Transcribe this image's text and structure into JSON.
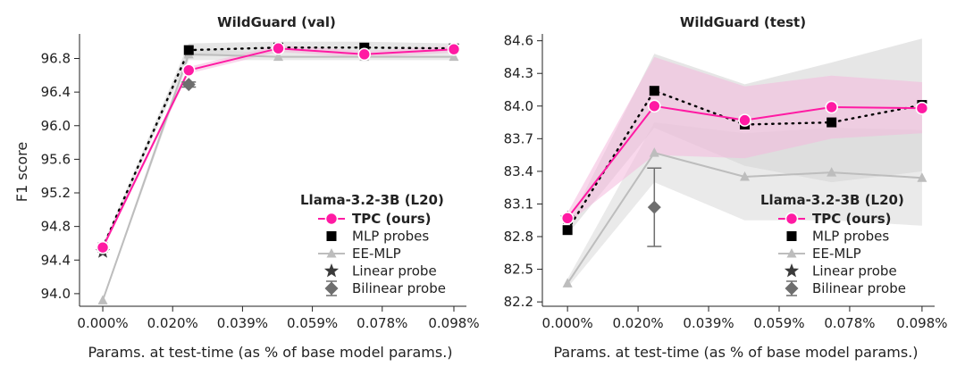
{
  "colors": {
    "tpc": "#ff1aa3",
    "mlp": "#000000",
    "ee": "#bdbdbd",
    "linear": "#3a3a3a",
    "bilinear": "#6e6e6e",
    "band_tpc": "#f4b8dc",
    "band_grey": "#d6d6d6"
  },
  "chart_data": [
    {
      "type": "line",
      "title": "WildGuard (val)",
      "xlabel": "Params. at test-time (as % of base model params.)",
      "ylabel": "F1 score",
      "x_ticks": [
        0.0,
        0.0195,
        0.039,
        0.0585,
        0.078,
        0.098
      ],
      "x_tick_labels": [
        "0.000%",
        "0.020%",
        "0.039%",
        "0.059%",
        "0.078%",
        "0.098%"
      ],
      "xlim": [
        -0.003,
        0.1
      ],
      "ylim": [
        93.85,
        97.05
      ],
      "y_ticks": [
        94.0,
        94.4,
        94.8,
        95.2,
        95.6,
        96.0,
        96.4,
        96.8
      ],
      "y_tick_labels": [
        "94.0",
        "94.4",
        "94.8",
        "95.2",
        "95.6",
        "96.0",
        "96.4",
        "96.8"
      ],
      "legend": {
        "position": "lower-right",
        "title": "Llama-3.2-3B (L20)",
        "entries": [
          "TPC (ours)",
          "MLP probes",
          "EE-MLP",
          "Linear probe",
          "Bilinear probe"
        ]
      },
      "series": [
        {
          "name": "TPC (ours)",
          "x": [
            0.0,
            0.024,
            0.049,
            0.073,
            0.098
          ],
          "y": [
            94.55,
            96.66,
            96.92,
            96.85,
            96.91
          ],
          "band_lo": [
            94.52,
            96.62,
            96.88,
            96.81,
            96.87
          ],
          "band_hi": [
            94.58,
            96.7,
            96.96,
            96.89,
            96.95
          ]
        },
        {
          "name": "MLP probes",
          "x": [
            0.0,
            0.024,
            0.049,
            0.073,
            0.098
          ],
          "y": [
            94.55,
            96.9,
            96.93,
            96.93,
            96.92
          ],
          "band_lo": [
            94.52,
            96.82,
            96.86,
            96.86,
            96.86
          ],
          "band_hi": [
            94.58,
            96.98,
            97.0,
            97.0,
            96.98
          ]
        },
        {
          "name": "EE-MLP",
          "x": [
            0.0,
            0.024,
            0.049,
            0.073,
            0.098
          ],
          "y": [
            93.92,
            96.85,
            96.82,
            96.82,
            96.82
          ],
          "band_lo": [
            93.9,
            96.78,
            96.78,
            96.78,
            96.78
          ],
          "band_hi": [
            93.94,
            96.92,
            96.86,
            96.86,
            96.86
          ]
        },
        {
          "name": "Linear probe",
          "x": [
            0.0
          ],
          "y": [
            94.5
          ]
        },
        {
          "name": "Bilinear probe",
          "x": [
            0.024
          ],
          "y": [
            96.49
          ],
          "err": [
            0.03
          ]
        }
      ]
    },
    {
      "type": "line",
      "title": "WildGuard (test)",
      "xlabel": "Params. at test-time (as % of base model params.)",
      "ylabel": "",
      "x_ticks": [
        0.0,
        0.0195,
        0.039,
        0.0585,
        0.078,
        0.098
      ],
      "x_tick_labels": [
        "0.000%",
        "0.020%",
        "0.039%",
        "0.059%",
        "0.078%",
        "0.098%"
      ],
      "xlim": [
        -0.003,
        0.1
      ],
      "ylim": [
        82.16,
        84.63
      ],
      "y_ticks": [
        82.2,
        82.5,
        82.8,
        83.1,
        83.4,
        83.7,
        84.0,
        84.3,
        84.6
      ],
      "y_tick_labels": [
        "82.2",
        "82.5",
        "82.8",
        "83.1",
        "83.4",
        "83.7",
        "84.0",
        "84.3",
        "84.6"
      ],
      "legend": {
        "position": "lower-right",
        "title": "Llama-3.2-3B (L20)",
        "entries": [
          "TPC (ours)",
          "MLP probes",
          "EE-MLP",
          "Linear probe",
          "Bilinear probe"
        ]
      },
      "series": [
        {
          "name": "TPC (ours)",
          "x": [
            0.0,
            0.024,
            0.049,
            0.073,
            0.098
          ],
          "y": [
            82.97,
            84.0,
            83.87,
            83.99,
            83.98
          ],
          "band_lo": [
            82.92,
            83.55,
            83.52,
            83.7,
            83.75
          ],
          "band_hi": [
            83.02,
            84.45,
            84.18,
            84.28,
            84.22
          ]
        },
        {
          "name": "MLP probes",
          "x": [
            0.0,
            0.024,
            0.049,
            0.073,
            0.098
          ],
          "y": [
            82.86,
            84.14,
            83.83,
            83.85,
            84.01
          ],
          "band_lo": [
            82.82,
            83.8,
            83.45,
            83.3,
            83.4
          ],
          "band_hi": [
            82.9,
            84.48,
            84.2,
            84.4,
            84.62
          ]
        },
        {
          "name": "EE-MLP",
          "x": [
            0.0,
            0.024,
            0.049,
            0.073,
            0.098
          ],
          "y": [
            82.37,
            83.57,
            83.35,
            83.39,
            83.34
          ],
          "band_lo": [
            82.33,
            83.3,
            82.95,
            82.95,
            82.9
          ],
          "band_hi": [
            82.41,
            83.85,
            83.75,
            83.8,
            83.78
          ]
        },
        {
          "name": "Linear probe",
          "x": [
            0.0
          ],
          "y": [
            82.97
          ]
        },
        {
          "name": "Bilinear probe",
          "x": [
            0.024
          ],
          "y": [
            83.07
          ],
          "err": [
            0.36
          ]
        }
      ]
    }
  ]
}
